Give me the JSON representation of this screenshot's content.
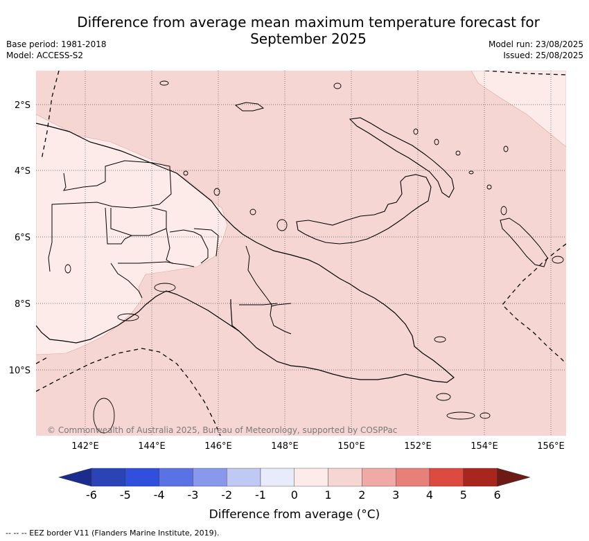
{
  "header": {
    "title_line1": "Difference from average mean maximum temperature forecast for",
    "title_line2": "September 2025",
    "base_period": "Base period: 1981-2018",
    "model": "Model: ACCESS-S2",
    "model_run": "Model run: 23/08/2025",
    "issued": "Issued: 25/08/2025"
  },
  "map": {
    "lat_labels": [
      "2°S",
      "4°S",
      "6°S",
      "8°S",
      "10°S"
    ],
    "lon_labels": [
      "142°E",
      "144°E",
      "146°E",
      "148°E",
      "150°E",
      "152°E",
      "154°E",
      "156°E"
    ],
    "copyright": "© Commonwealth of Australia 2025, Bureau of Meteorology, supported by COSPPac",
    "colors": {
      "land_fill": "#ffffff",
      "anomaly_1_2": "#f5d6d3",
      "anomaly_0_1": "#fcebe8"
    }
  },
  "colorbar": {
    "ticks": [
      "-6",
      "-5",
      "-4",
      "-3",
      "-2",
      "-1",
      "0",
      "1",
      "2",
      "3",
      "4",
      "5",
      "6"
    ],
    "colors": [
      "#1c2b8e",
      "#2a44b8",
      "#2f4fdc",
      "#5a72e4",
      "#8898ec",
      "#c0c8f4",
      "#e8ecfa",
      "#fcebe8",
      "#f5d6d3",
      "#efaaa5",
      "#e8807a",
      "#dc4a40",
      "#a8261e",
      "#6e1a14"
    ],
    "label": "Difference from average (°C)"
  },
  "footer": {
    "legend": "--  --  -- EEZ border V11 (Flanders Marine Institute, 2019)."
  }
}
